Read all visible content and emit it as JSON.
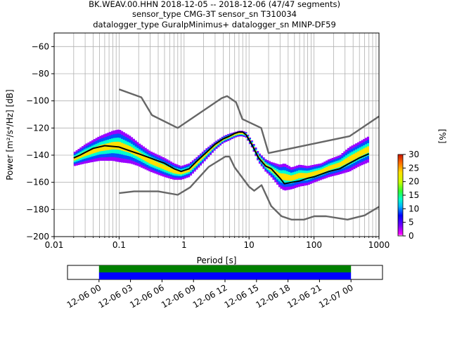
{
  "chart_data": [
    {
      "type": "heatmap",
      "title_lines": [
        "BK.WEAV.00.HHN   2018-12-05 -- 2018-12-06  (47/47 segments)",
        "sensor_type CMG-3T sensor_sn T310034",
        "datalogger_type GuralpMinimus+ datalogger_sn MINP-DF59"
      ],
      "xlabel": "Period [s]",
      "ylabel": "Power [m²/s⁴/Hz] [dB]",
      "xscale": "log",
      "xlim": [
        0.01,
        1000
      ],
      "ylim": [
        -200,
        -50
      ],
      "grid": true,
      "x_ticks": [
        {
          "value": 0.01,
          "label": "0.01"
        },
        {
          "value": 0.1,
          "label": "0.1"
        },
        {
          "value": 1,
          "label": "1"
        },
        {
          "value": 10,
          "label": "10"
        },
        {
          "value": 100,
          "label": "100"
        },
        {
          "value": 1000,
          "label": "1000"
        }
      ],
      "y_ticks": [
        -60,
        -80,
        -100,
        -120,
        -140,
        -160,
        -180,
        -200
      ],
      "colorbar": {
        "label": "[%]",
        "range": [
          0,
          30
        ],
        "ticks": [
          0,
          5,
          10,
          15,
          20,
          25,
          30
        ]
      },
      "series": [
        {
          "role": "mode",
          "color": "#000000",
          "x": [
            0.02,
            0.025,
            0.03,
            0.04,
            0.06,
            0.1,
            0.15,
            0.2,
            0.3,
            0.5,
            0.7,
            0.9,
            1.2,
            1.6,
            2.2,
            3,
            4,
            5,
            6,
            7,
            8,
            9,
            11,
            14,
            18,
            22,
            30,
            35,
            45,
            60,
            80,
            100,
            130,
            170,
            250,
            350,
            500,
            700
          ],
          "y": [
            -142,
            -140,
            -138,
            -135,
            -133,
            -134,
            -137,
            -139,
            -142,
            -146,
            -150,
            -152,
            -150,
            -144,
            -138,
            -132,
            -128,
            -126,
            -124,
            -123,
            -123,
            -125,
            -132,
            -142,
            -148,
            -150,
            -157,
            -161,
            -160,
            -159,
            -157,
            -156,
            -154,
            -152,
            -150,
            -146,
            -142,
            -139
          ]
        },
        {
          "role": "noise-model-upper",
          "color": "#666666",
          "x": [
            0.1,
            0.22,
            0.32,
            0.8,
            3.8,
            4.6,
            6.3,
            7.9,
            15.4,
            20,
            354.8,
            1000
          ],
          "y": [
            -91.5,
            -97.4,
            -110.5,
            -120,
            -98,
            -96.5,
            -101,
            -113.4,
            -120,
            -138.5,
            -126,
            -111.4
          ]
        },
        {
          "role": "noise-model-lower",
          "color": "#666666",
          "x": [
            0.1,
            0.17,
            0.4,
            0.8,
            1.24,
            2.4,
            4.3,
            5,
            6,
            10,
            12,
            15.6,
            21.9,
            31.6,
            45,
            70,
            101,
            154,
            328,
            600,
            1000
          ],
          "y": [
            -168,
            -166.7,
            -166.7,
            -169.2,
            -163.7,
            -148.6,
            -141.1,
            -141.1,
            -149,
            -163.2,
            -166.2,
            -162.1,
            -177.5,
            -185,
            -187.5,
            -187.5,
            -185,
            -185,
            -187.5,
            -184.4,
            -178
          ]
        }
      ],
      "density_band": {
        "x": [
          0.02,
          0.03,
          0.05,
          0.08,
          0.1,
          0.15,
          0.2,
          0.3,
          0.5,
          0.7,
          0.9,
          1.2,
          1.6,
          2.2,
          3,
          4,
          5,
          6,
          7,
          8,
          9,
          11,
          14,
          18,
          22,
          30,
          35,
          45,
          60,
          80,
          100,
          130,
          170,
          250,
          350,
          500,
          700
        ],
        "y_top": [
          -138,
          -132,
          -126,
          -122,
          -121,
          -126,
          -131,
          -137,
          -142,
          -146,
          -148,
          -146,
          -141,
          -135,
          -130,
          -126,
          -124,
          -123,
          -122,
          -122,
          -123,
          -129,
          -138,
          -143,
          -145,
          -147,
          -146,
          -149,
          -147,
          -148,
          -147,
          -146,
          -143,
          -140,
          -134,
          -130,
          -126
        ],
        "y_bottom": [
          -148,
          -146,
          -144,
          -144,
          -145,
          -146,
          -148,
          -152,
          -156,
          -158,
          -158,
          -156,
          -150,
          -143,
          -136,
          -131,
          -129,
          -127,
          -126,
          -126,
          -127,
          -134,
          -145,
          -152,
          -156,
          -164,
          -166,
          -165,
          -163,
          -162,
          -160,
          -158,
          -156,
          -154,
          -152,
          -148,
          -145
        ]
      }
    },
    {
      "type": "timeline",
      "tick_labels": [
        "12-06 00",
        "12-06 03",
        "12-06 06",
        "12-06 09",
        "12-06 12",
        "12-06 15",
        "12-06 18",
        "12-06 21",
        "12-07 00"
      ],
      "range_hours": [
        -3,
        27
      ],
      "bars": [
        {
          "color": "#008000",
          "start_hour": 0,
          "end_hour": 24
        },
        {
          "color": "#0000ff",
          "start_hour": 0,
          "end_hour": 24
        }
      ]
    }
  ]
}
